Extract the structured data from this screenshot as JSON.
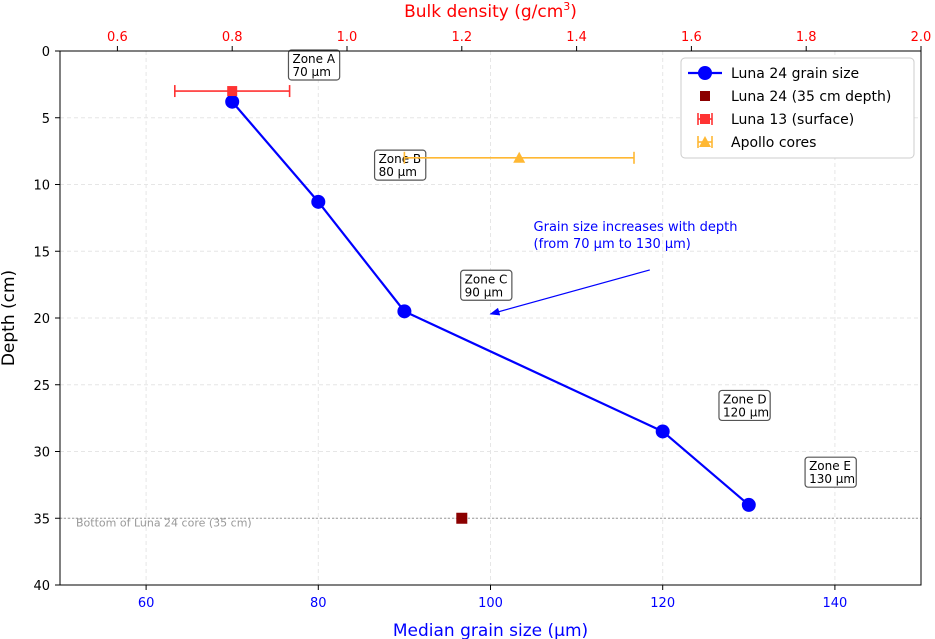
{
  "chart_data": {
    "type": "line",
    "xlabel_bottom": "Median grain size (µm)",
    "xlabel_top_text": "Bulk density (g/cm",
    "xlabel_top_sup": "3",
    "xlabel_top_close": ")",
    "ylabel": "Depth (cm)",
    "xlim_bottom": [
      50,
      150
    ],
    "xlim_top": [
      0.5,
      2.0
    ],
    "ylim": [
      40,
      0
    ],
    "y_inverted": true,
    "x_ticks_bottom": [
      "60",
      "80",
      "100",
      "120",
      "140"
    ],
    "x_ticks_top": [
      "0.6",
      "0.8",
      "1.0",
      "1.2",
      "1.4",
      "1.6",
      "1.8",
      "2.0"
    ],
    "y_ticks": [
      "0",
      "5",
      "10",
      "15",
      "20",
      "25",
      "30",
      "35",
      "40"
    ],
    "grid": true,
    "legend_position": "top-right",
    "colors": {
      "grain": "#0000ff",
      "luna24_density": "#8b0000",
      "luna13": "#ff3333",
      "apollo": "#ffb833",
      "axis_bottom_ticks": "#0000ff",
      "axis_top_ticks": "#ff0000",
      "reference_line": "#999999"
    },
    "series": [
      {
        "name": "Luna 24 grain size",
        "axis": "bottom",
        "points": [
          {
            "x": 70,
            "y": 3.8
          },
          {
            "x": 80,
            "y": 11.3
          },
          {
            "x": 90,
            "y": 19.5
          },
          {
            "x": 120,
            "y": 28.5
          },
          {
            "x": 130,
            "y": 34
          }
        ]
      },
      {
        "name": "Luna 24 (35 cm depth)",
        "axis": "top",
        "points": [
          {
            "x": 1.2,
            "y": 35
          }
        ]
      },
      {
        "name": "Luna 13 (surface)",
        "axis": "top",
        "points": [
          {
            "x": 0.8,
            "y": 3,
            "xerr": 0.1
          }
        ]
      },
      {
        "name": "Apollo cores",
        "axis": "top",
        "points": [
          {
            "x": 1.3,
            "y": 8,
            "xerr": 0.2
          }
        ]
      }
    ],
    "zones": [
      {
        "name": "Zone A",
        "value": "70 µm",
        "x": 77,
        "y": 0
      },
      {
        "name": "Zone B",
        "value": "80 µm",
        "x": 87,
        "y": 7.5
      },
      {
        "name": "Zone C",
        "value": "90 µm",
        "x": 97,
        "y": 16.5
      },
      {
        "name": "Zone D",
        "value": "120 µm",
        "x": 127,
        "y": 25.5
      },
      {
        "name": "Zone E",
        "value": "130 µm",
        "x": 137,
        "y": 30.5
      }
    ],
    "annotation": {
      "line1": "Grain size increases with depth",
      "line2": "(from 70 µm to 130 µm)",
      "text_x": 105,
      "text_y": 13.5,
      "arrow_to_x": 100,
      "arrow_to_y": 20
    },
    "reference_line": {
      "y": 35,
      "label": "Bottom of Luna 24 core (35 cm)"
    }
  }
}
